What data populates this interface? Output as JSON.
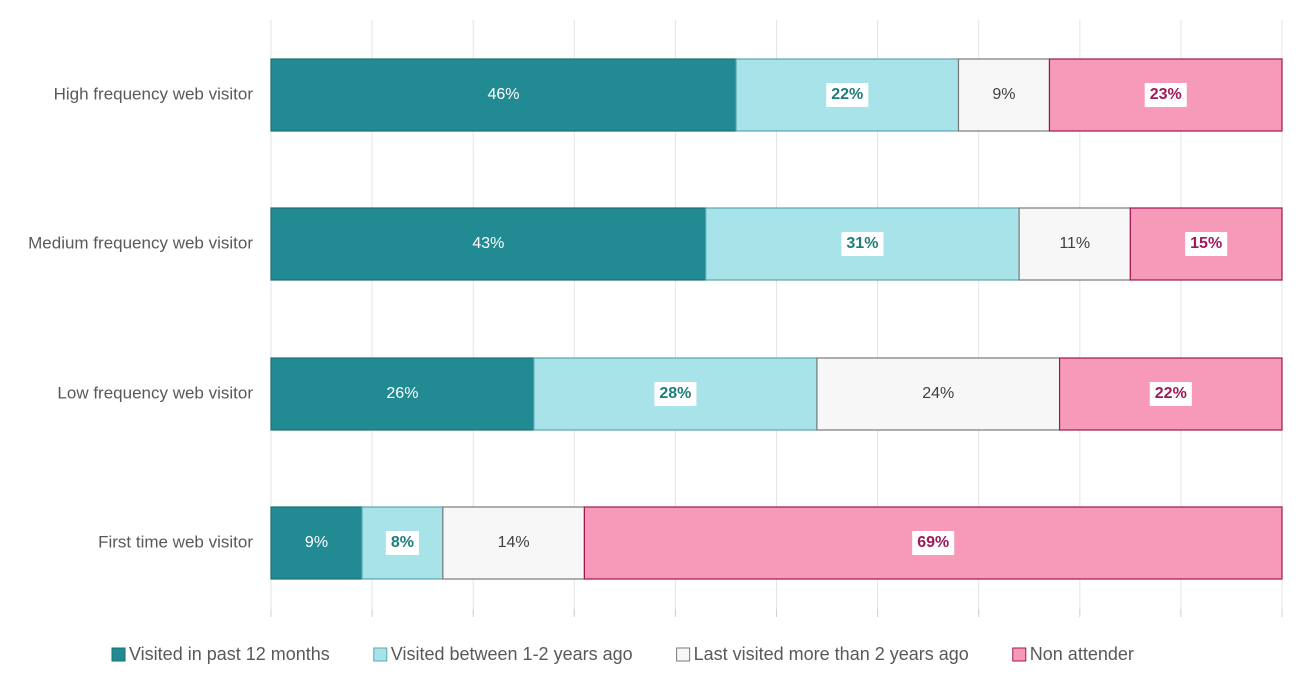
{
  "chart_data": {
    "type": "stacked-barh",
    "categories": [
      "High frequency web visitor",
      "Medium frequency web visitor",
      "Low frequency web visitor",
      "First time web visitor"
    ],
    "series": [
      {
        "name": "Visited in past 12 months",
        "color": "#228a93",
        "edgecolor": "#1b6f76",
        "label_color": "#ffffff",
        "values": [
          46,
          43,
          26,
          9
        ],
        "value_labels": [
          "46%",
          "43%",
          "26%",
          "9%"
        ]
      },
      {
        "name": "Visited between 1-2 years ago",
        "color": "#a8e3ea",
        "edgecolor": "#5aa7b0",
        "label_color": "#1e7d78",
        "values": [
          22,
          31,
          28,
          8
        ],
        "value_labels": [
          "22%",
          "31%",
          "28%",
          "8%"
        ]
      },
      {
        "name": "Last visited more than 2 years ago",
        "color": "#f7f7f7",
        "edgecolor": "#7a7a7a",
        "label_color": "#404040",
        "values": [
          9,
          11,
          24,
          14
        ],
        "value_labels": [
          "9%",
          "11%",
          "24%",
          "14%"
        ]
      },
      {
        "name": "Non attender",
        "color": "#f799b9",
        "edgecolor": "#a0174f",
        "label_color": "#a0175a",
        "values": [
          23,
          15,
          22,
          69
        ],
        "value_labels": [
          "23%",
          "15%",
          "22%",
          "69%"
        ]
      }
    ],
    "xlim": [
      0,
      100
    ],
    "xticks": [
      0,
      10,
      20,
      30,
      40,
      50,
      60,
      70,
      80,
      90,
      100
    ],
    "grid": true
  }
}
